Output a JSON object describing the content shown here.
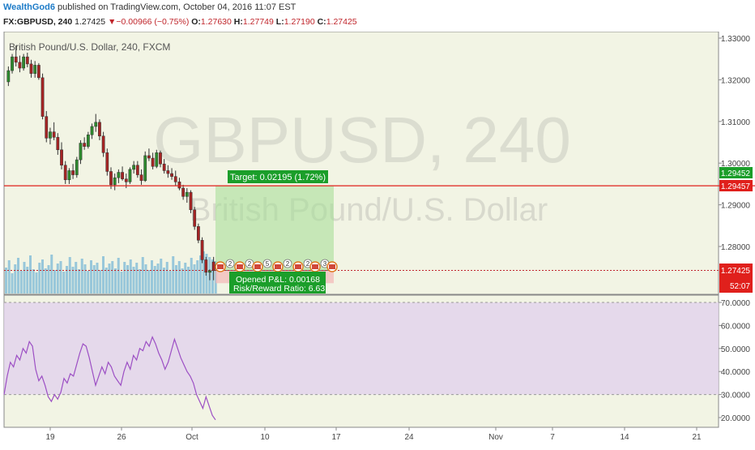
{
  "header": {
    "username": "WealthGod6",
    "published_text": "published on TradingView.com, October 04, 2016 11:07 EST"
  },
  "ohlc_bar": {
    "symbol": "FX:GBPUSD, 240",
    "last": "1.27425",
    "change": "▼−0.00966 (−0.75%)",
    "o_label": "O:",
    "o_value": "1.27630",
    "h_label": "H:",
    "h_value": "1.27749",
    "l_label": "L:",
    "l_value": "1.27190",
    "c_label": "C:",
    "c_value": "1.27425"
  },
  "pane_title": "British Pound/U.S. Dollar, 240, FXCM",
  "watermark": {
    "line1": "GBPUSD, 240",
    "line2": "British Pound/U.S. Dollar"
  },
  "position": {
    "target_label": "Target: 0.02195 (1.72%)",
    "opened_pl_label": "Opened P&L: 0.00168",
    "rr_label": "Risk/Reward Ratio: 6.63",
    "target_price": 1.29452,
    "entry_price": 1.27425,
    "stop_price": 1.27119
  },
  "price_axis": {
    "ticks": [
      "1.33000",
      "1.32000",
      "1.31000",
      "1.30000",
      "1.29000",
      "1.28000"
    ],
    "resistance_label": "1.29457",
    "target_label": "1.29452",
    "last_label": "1.27425",
    "countdown": "52:07",
    "resistance_price": 1.29457
  },
  "rsi_axis": {
    "ticks": [
      "70.0000",
      "60.0000",
      "50.0000",
      "40.0000",
      "30.0000",
      "20.0000"
    ],
    "upper_band": 70,
    "lower_band": 30
  },
  "time_axis": {
    "labels": [
      "19",
      "26",
      "Oct",
      "10",
      "17",
      "24",
      "Nov",
      "7",
      "14",
      "21"
    ]
  },
  "events": {
    "count_labels": [
      "2",
      "2",
      "5",
      "2",
      "2",
      "3"
    ]
  },
  "chart_data": {
    "type": "candlestick",
    "title": "British Pound/U.S. Dollar, 240, FXCM",
    "ylim": [
      1.2712,
      1.3305
    ],
    "ohlc": [
      [
        1.3195,
        1.3232,
        1.3185,
        1.3222
      ],
      [
        1.3222,
        1.3262,
        1.3215,
        1.3255
      ],
      [
        1.3255,
        1.3282,
        1.3232,
        1.3242
      ],
      [
        1.3242,
        1.3258,
        1.3218,
        1.3228
      ],
      [
        1.3228,
        1.3262,
        1.3222,
        1.3255
      ],
      [
        1.3255,
        1.3265,
        1.323,
        1.3238
      ],
      [
        1.3238,
        1.3248,
        1.3205,
        1.3215
      ],
      [
        1.3215,
        1.3245,
        1.3205,
        1.3235
      ],
      [
        1.3235,
        1.324,
        1.32,
        1.3205
      ],
      [
        1.3205,
        1.3215,
        1.3105,
        1.3112
      ],
      [
        1.3112,
        1.3125,
        1.305,
        1.306
      ],
      [
        1.306,
        1.3085,
        1.3045,
        1.3075
      ],
      [
        1.3075,
        1.3098,
        1.3055,
        1.3062
      ],
      [
        1.3062,
        1.3072,
        1.302,
        1.3032
      ],
      [
        1.3032,
        1.305,
        1.2985,
        1.2995
      ],
      [
        1.2995,
        1.3005,
        1.295,
        1.296
      ],
      [
        1.296,
        1.2988,
        1.295,
        1.2982
      ],
      [
        1.2982,
        1.2998,
        1.2962,
        1.2972
      ],
      [
        1.2972,
        1.3015,
        1.2965,
        1.3008
      ],
      [
        1.3008,
        1.3055,
        1.2998,
        1.3048
      ],
      [
        1.3048,
        1.3062,
        1.3032,
        1.304
      ],
      [
        1.304,
        1.3075,
        1.3035,
        1.3068
      ],
      [
        1.3068,
        1.3095,
        1.3058,
        1.3088
      ],
      [
        1.3088,
        1.3118,
        1.3075,
        1.3098
      ],
      [
        1.3098,
        1.3105,
        1.3055,
        1.3065
      ],
      [
        1.3065,
        1.3075,
        1.3015,
        1.3025
      ],
      [
        1.3025,
        1.3035,
        1.297,
        1.298
      ],
      [
        1.298,
        1.299,
        1.2938,
        1.2948
      ],
      [
        1.2948,
        1.2975,
        1.2935,
        1.2965
      ],
      [
        1.2965,
        1.2985,
        1.2952,
        1.2978
      ],
      [
        1.2978,
        1.2992,
        1.2958,
        1.2962
      ],
      [
        1.2962,
        1.2975,
        1.294,
        1.2955
      ],
      [
        1.2955,
        1.299,
        1.295,
        1.2985
      ],
      [
        1.2985,
        1.3005,
        1.2975,
        1.2995
      ],
      [
        1.2995,
        1.3005,
        1.2965,
        1.2972
      ],
      [
        1.2972,
        1.2985,
        1.2948,
        1.2958
      ],
      [
        1.2958,
        1.3028,
        1.2955,
        1.3018
      ],
      [
        1.3018,
        1.3035,
        1.3005,
        1.3012
      ],
      [
        1.3012,
        1.3025,
        1.2985,
        1.2992
      ],
      [
        1.2992,
        1.3032,
        1.2988,
        1.3025
      ],
      [
        1.3025,
        1.303,
        1.299,
        1.2998
      ],
      [
        1.2998,
        1.301,
        1.2975,
        1.2982
      ],
      [
        1.2982,
        1.2995,
        1.2965,
        1.2975
      ],
      [
        1.2975,
        1.2988,
        1.296,
        1.2968
      ],
      [
        1.2968,
        1.2982,
        1.2945,
        1.2955
      ],
      [
        1.2955,
        1.2965,
        1.2935,
        1.294
      ],
      [
        1.294,
        1.2948,
        1.2912,
        1.292
      ],
      [
        1.292,
        1.294,
        1.2905,
        1.293
      ],
      [
        1.293,
        1.2935,
        1.288,
        1.2888
      ],
      [
        1.2888,
        1.2895,
        1.284,
        1.2848
      ],
      [
        1.2848,
        1.2855,
        1.2808,
        1.2815
      ],
      [
        1.2815,
        1.2822,
        1.276,
        1.2768
      ],
      [
        1.2768,
        1.2775,
        1.273,
        1.2738
      ],
      [
        1.2738,
        1.2745,
        1.2719,
        1.2742
      ],
      [
        1.2763,
        1.2775,
        1.2719,
        1.2742
      ]
    ],
    "rsi": [
      30,
      38,
      44,
      42,
      47,
      45,
      50,
      48,
      53,
      51,
      41,
      36,
      38,
      34,
      29,
      27,
      30,
      28,
      31,
      37,
      35,
      39,
      38,
      43,
      48,
      52,
      51,
      46,
      40,
      34,
      38,
      42,
      39,
      44,
      42,
      38,
      36,
      34,
      40,
      44,
      41,
      47,
      45,
      50,
      49,
      53,
      51,
      55,
      52,
      48,
      45,
      41,
      44,
      49,
      54,
      50,
      46,
      43,
      40,
      38,
      35,
      30,
      27,
      24,
      29,
      25,
      21,
      19
    ],
    "volume": [
      32,
      41,
      25,
      36,
      44,
      28,
      39,
      33,
      47,
      30,
      26,
      38,
      42,
      31,
      35,
      48,
      29,
      37,
      40,
      27,
      34,
      45,
      33,
      39,
      30,
      43,
      36,
      28,
      41,
      35,
      38,
      29,
      46,
      32,
      37,
      40,
      31,
      44,
      27,
      39,
      35,
      42,
      33,
      38,
      30,
      45,
      36,
      29,
      41,
      34,
      37,
      43,
      32,
      39,
      28,
      46,
      35,
      40,
      31,
      38,
      33,
      44,
      36,
      41,
      47,
      52,
      49,
      45,
      42,
      40
    ],
    "time_labels": [
      "19",
      "26",
      "Oct",
      "10",
      "17",
      "24",
      "Nov",
      "7",
      "14",
      "21"
    ]
  }
}
